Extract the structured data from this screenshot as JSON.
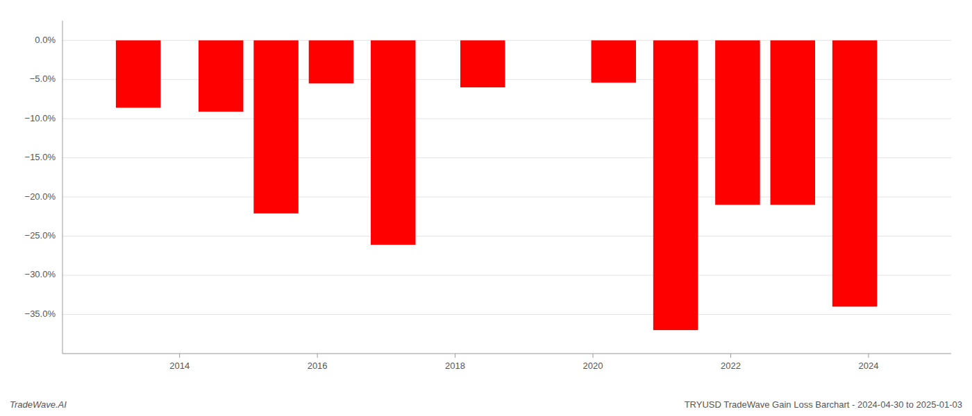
{
  "chart_data": {
    "type": "bar",
    "title": "TRYUSD TradeWave Gain Loss Barchart - 2024-04-30 to 2025-01-03",
    "annotations": [
      "TradeWave.AI"
    ],
    "x": [
      2013.4,
      2014.6,
      2015.4,
      2016.2,
      2017.1,
      2018.4,
      2020.3,
      2021.2,
      2022.1,
      2022.9,
      2023.8
    ],
    "values": [
      -0.086,
      -0.091,
      -0.221,
      -0.055,
      -0.261,
      -0.06,
      -0.054,
      -0.37,
      -0.21,
      -0.21,
      -0.34
    ],
    "color": "#ff0000",
    "xlim": [
      2012.3,
      2025.2
    ],
    "xticks": [
      2014,
      2016,
      2018,
      2020,
      2022,
      2024
    ],
    "ylim": [
      -0.4,
      0.025
    ],
    "yticks": [
      {
        "value": 0.0,
        "label": "0.0%"
      },
      {
        "value": -0.05,
        "label": "−5.0%"
      },
      {
        "value": -0.1,
        "label": "−10.0%"
      },
      {
        "value": -0.15,
        "label": "−15.0%"
      },
      {
        "value": -0.2,
        "label": "−20.0%"
      },
      {
        "value": -0.25,
        "label": "−25.0%"
      },
      {
        "value": -0.3,
        "label": "−30.0%"
      },
      {
        "value": -0.35,
        "label": "−35.0%"
      }
    ],
    "grid": true
  }
}
